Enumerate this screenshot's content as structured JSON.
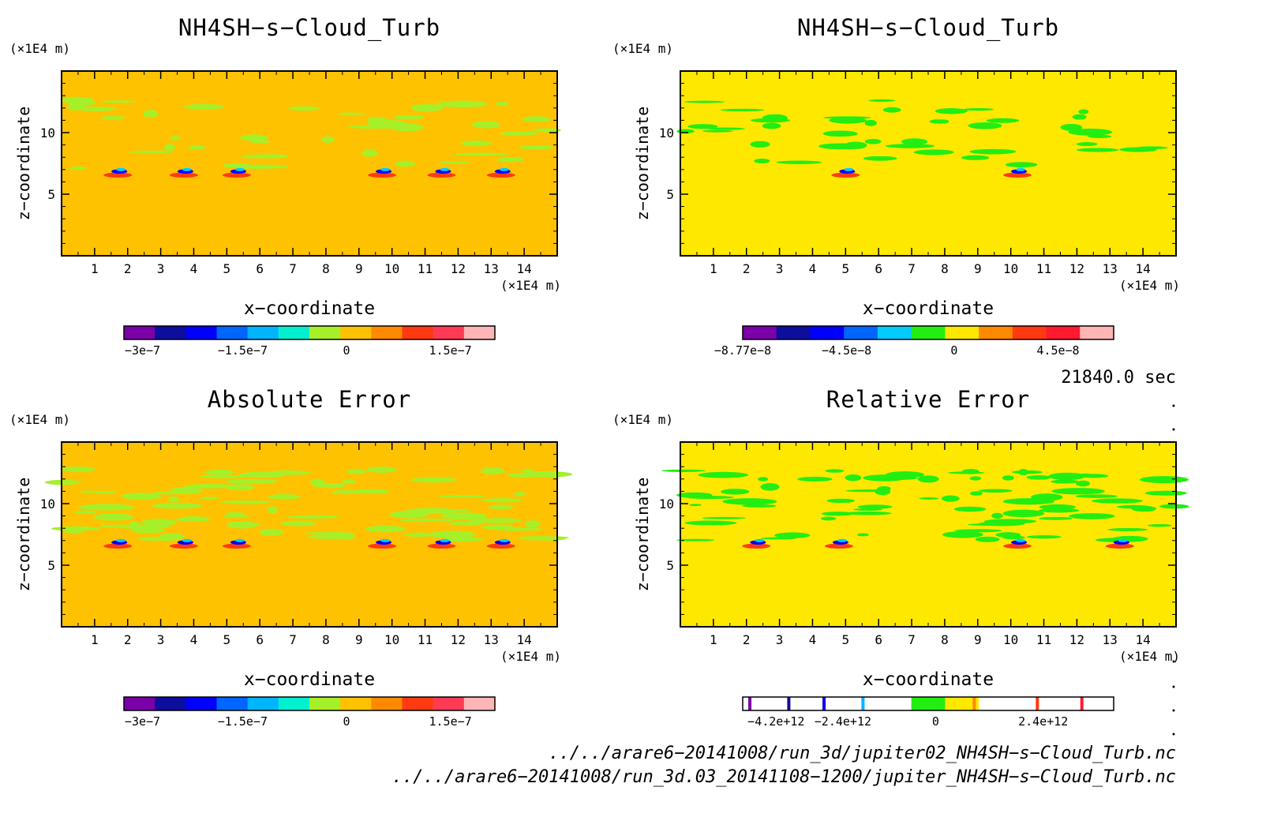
{
  "charts": [
    {
      "title": "NH4SH−s−Cloud_Turb",
      "yunit": "(×1E4 m)",
      "xunit": "(×1E4 m)",
      "xlabel": "x−coordinate",
      "ylabel": "z−coordinate"
    },
    {
      "title": "NH4SH−s−Cloud_Turb",
      "yunit": "(×1E4 m)",
      "xunit": "(×1E4 m)",
      "xlabel": "x−coordinate",
      "ylabel": "z−coordinate"
    },
    {
      "title": "Absolute Error",
      "yunit": "(×1E4 m)",
      "xunit": "(×1E4 m)",
      "xlabel": "x−coordinate",
      "ylabel": "z−coordinate"
    },
    {
      "title": "Relative Error",
      "yunit": "(×1E4 m)",
      "xunit": "(×1E4 m)",
      "xlabel": "x−coordinate",
      "ylabel": "z−coordinate"
    }
  ],
  "time_label": "21840.0 sec",
  "files": [
    "../../arare6−20141008/run_3d/jupiter02_NH4SH−s−Cloud_Turb.nc",
    "../../arare6−20141008/run_3d.03_20141108−1200/jupiter_NH4SH−s−Cloud_Turb.nc"
  ],
  "chart_data": [
    {
      "type": "heatmap",
      "title": "NH4SH−s−Cloud_Turb",
      "xlabel": "x−coordinate",
      "ylabel": "z−coordinate",
      "xlim": [
        0,
        15
      ],
      "ylim": [
        0,
        15
      ],
      "xticks": [
        "1",
        "2",
        "3",
        "4",
        "5",
        "6",
        "7",
        "8",
        "9",
        "10",
        "11",
        "12",
        "13",
        "14"
      ],
      "yticks": [
        "5",
        "10"
      ],
      "colorbar": {
        "colors": [
          "#7b00a8",
          "#0d0d9e",
          "#0000ff",
          "#0066ff",
          "#00b5ff",
          "#00f0d0",
          "#a6f02a",
          "#ffc200",
          "#ff8a00",
          "#ff3a10",
          "#ff3a55",
          "#ffb5b5"
        ],
        "labels": [
          "−3e−7",
          "−1.5e−7",
          "0",
          "1.5e−7"
        ]
      },
      "background": "#ffc200",
      "accents": [
        "#a6f02a"
      ]
    },
    {
      "type": "heatmap",
      "title": "NH4SH−s−Cloud_Turb",
      "xlabel": "x−coordinate",
      "ylabel": "z−coordinate",
      "xlim": [
        0,
        15
      ],
      "ylim": [
        0,
        15
      ],
      "xticks": [
        "1",
        "2",
        "3",
        "4",
        "5",
        "6",
        "7",
        "8",
        "9",
        "10",
        "11",
        "12",
        "13",
        "14"
      ],
      "yticks": [
        "5",
        "10"
      ],
      "colorbar": {
        "colors": [
          "#7b00a8",
          "#0d0d9e",
          "#0000ff",
          "#0066ff",
          "#00ccff",
          "#22ee11",
          "#ffe800",
          "#ff8a00",
          "#ff3a10",
          "#ff1a30",
          "#ffb5b5"
        ],
        "labels": [
          "−8.77e−8",
          "−4.5e−8",
          "0",
          "4.5e−8"
        ]
      },
      "background": "#ffe800",
      "accents": [
        "#22ee11"
      ]
    },
    {
      "type": "heatmap",
      "title": "Absolute Error",
      "xlabel": "x−coordinate",
      "ylabel": "z−coordinate",
      "xlim": [
        0,
        15
      ],
      "ylim": [
        0,
        15
      ],
      "xticks": [
        "1",
        "2",
        "3",
        "4",
        "5",
        "6",
        "7",
        "8",
        "9",
        "10",
        "11",
        "12",
        "13",
        "14"
      ],
      "yticks": [
        "5",
        "10"
      ],
      "colorbar": {
        "colors": [
          "#7b00a8",
          "#0d0d9e",
          "#0000ff",
          "#0066ff",
          "#00b5ff",
          "#00f0d0",
          "#a6f02a",
          "#ffc200",
          "#ff8a00",
          "#ff3a10",
          "#ff3a55",
          "#ffb5b5"
        ],
        "labels": [
          "−3e−7",
          "−1.5e−7",
          "0",
          "1.5e−7"
        ]
      },
      "background": "#ffc200",
      "accents": [
        "#a6f02a"
      ]
    },
    {
      "type": "heatmap",
      "title": "Relative Error",
      "xlabel": "x−coordinate",
      "ylabel": "z−coordinate",
      "xlim": [
        0,
        15
      ],
      "ylim": [
        0,
        15
      ],
      "xticks": [
        "1",
        "2",
        "3",
        "4",
        "5",
        "6",
        "7",
        "8",
        "9",
        "10",
        "11",
        "12",
        "13",
        "14"
      ],
      "yticks": [
        "5",
        "10"
      ],
      "colorbar": {
        "colors": [
          "#ffffff",
          "#ffffff",
          "#ffffff",
          "#ffffff",
          "#ffffff",
          "#22ee11",
          "#ffe800",
          "#ffffff",
          "#ffffff",
          "#ffffff",
          "#ffffff"
        ],
        "tick_colors": [
          "#7b00a8",
          "#0d0d9e",
          "#0000ff",
          "#00b5ff",
          "#ff8a00",
          "#ff3a10",
          "#ff1a30"
        ],
        "labels": [
          "−4.2e+12",
          "−2.4e+12",
          "0",
          "2.4e+12"
        ]
      },
      "background": "#ffe800",
      "accents": [
        "#22ee11"
      ]
    }
  ]
}
